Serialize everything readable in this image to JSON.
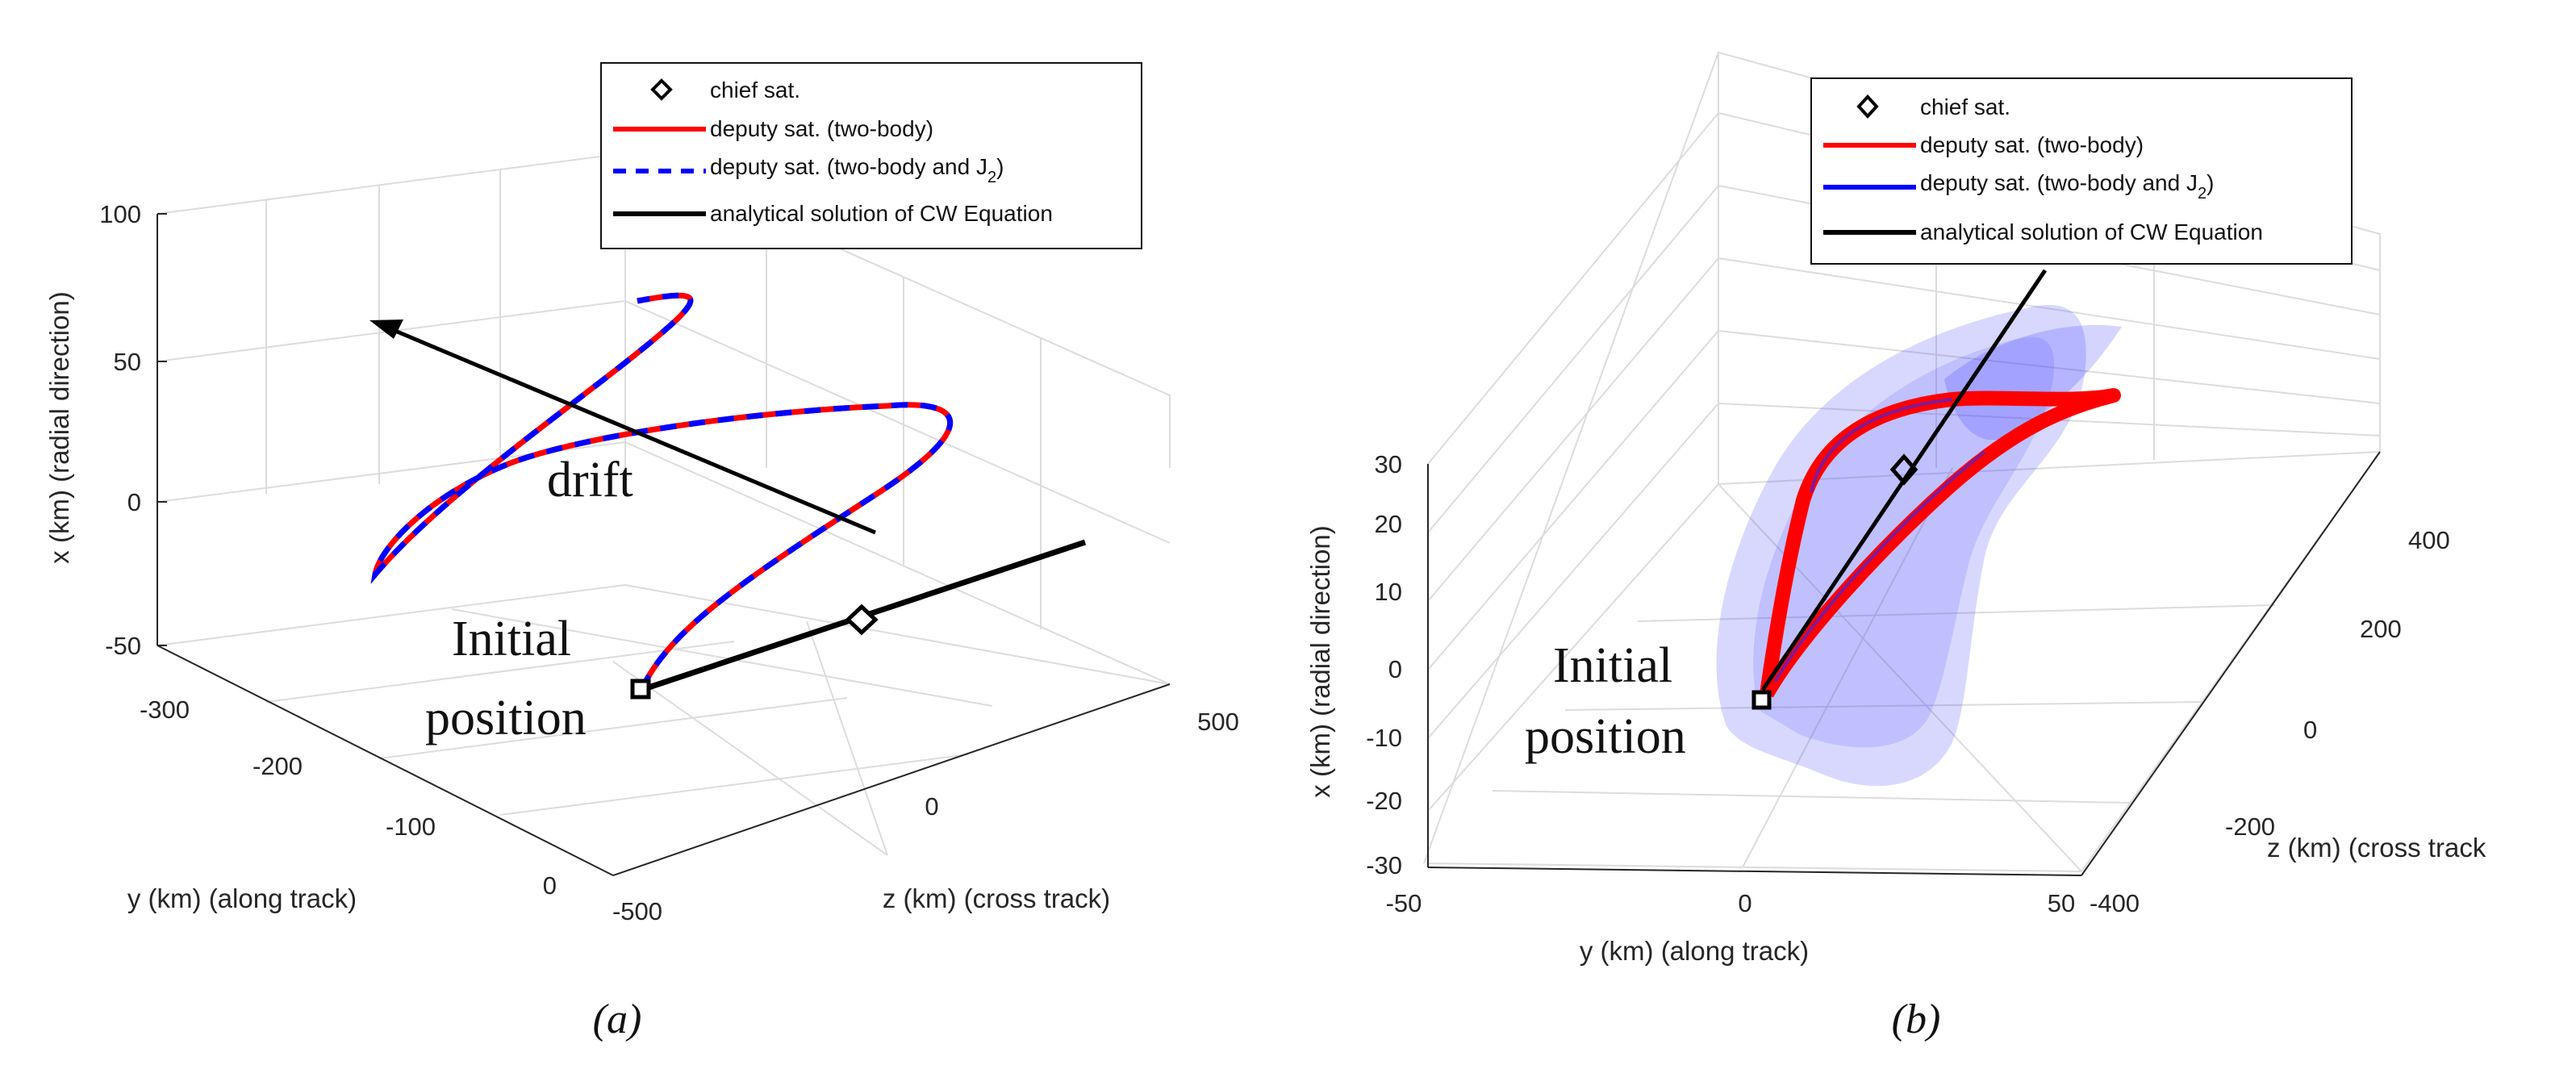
{
  "chart_data": [
    {
      "panel": "(a)",
      "type": "line",
      "projection": "3d",
      "xlabel": "y (km) (along track)",
      "ylabel": "x (km) (radial direction)",
      "zlabel": "z (km) (cross track)",
      "x_ticks": [
        "-300",
        "-200",
        "-100",
        "0"
      ],
      "y_ticks": [
        "100",
        "50",
        "0",
        "-50"
      ],
      "z_ticks": [
        "-500",
        "0",
        "500"
      ],
      "legend": [
        {
          "label": "chief sat.",
          "style": "diamond-marker",
          "color": "#000000"
        },
        {
          "label": "deputy sat. (two-body)",
          "style": "solid",
          "color": "#ff0000"
        },
        {
          "label": "deputy sat. (two-body and J",
          "sub": "2",
          "tail": ")",
          "style": "dashed",
          "color": "#0000ff"
        },
        {
          "label": "analytical solution of CW Equation",
          "style": "solid",
          "color": "#000000"
        }
      ],
      "annotations": {
        "drift": "drift",
        "initial_line1": "Initial",
        "initial_line2": "position"
      },
      "caption": "(a)"
    },
    {
      "panel": "(b)",
      "type": "line",
      "projection": "3d",
      "xlabel": "y (km) (along track)",
      "ylabel": "x (km) (radial direction)",
      "zlabel": "z (km) (cross track",
      "x_ticks": [
        "-50",
        "0",
        "50"
      ],
      "y_ticks": [
        "30",
        "20",
        "10",
        "0",
        "-10",
        "-20",
        "-30"
      ],
      "z_ticks": [
        "400",
        "200",
        "0",
        "-200",
        "-400"
      ],
      "legend": [
        {
          "label": "chief sat.",
          "style": "diamond-marker",
          "color": "#000000"
        },
        {
          "label": "deputy sat. (two-body)",
          "style": "solid",
          "color": "#ff0000"
        },
        {
          "label": "deputy sat. (two-body and J",
          "sub": "2",
          "tail": ")",
          "style": "solid",
          "color": "#0000ff"
        },
        {
          "label": "analytical solution of CW Equation",
          "style": "solid",
          "color": "#000000"
        }
      ],
      "annotations": {
        "initial_line1": "Initial",
        "initial_line2": "position"
      },
      "caption": "(b)"
    }
  ]
}
